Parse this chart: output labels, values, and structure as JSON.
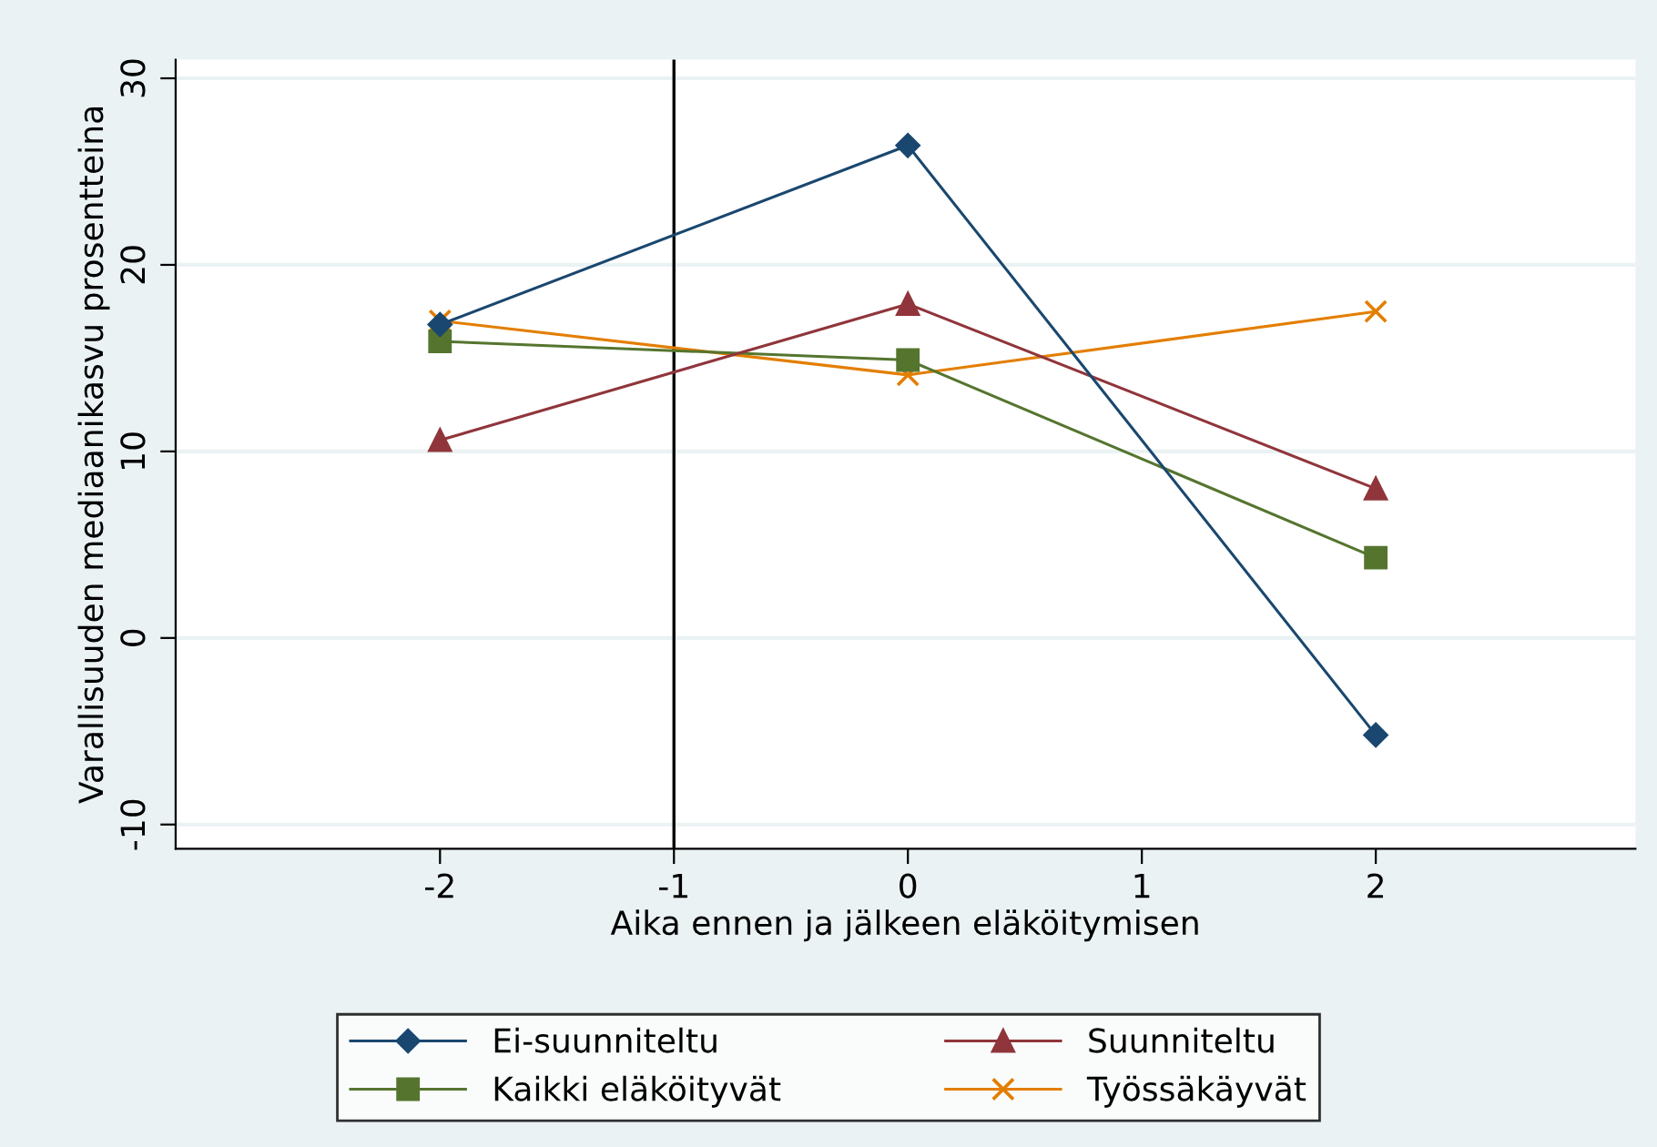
{
  "chart_data": {
    "type": "line",
    "xlabel": "Aika ennen ja jälkeen eläköitymisen",
    "ylabel": "Varallisuuden mediaanikasvu prosentteina",
    "x": [
      -2,
      0,
      2
    ],
    "series": [
      {
        "name": "Ei-suunniteltu",
        "color": "#1a476f",
        "marker": "diamond",
        "values": [
          16.8,
          26.4,
          -5.2
        ]
      },
      {
        "name": "Suunniteltu",
        "color": "#90353b",
        "marker": "triangle",
        "values": [
          10.6,
          17.9,
          8.0
        ]
      },
      {
        "name": "Kaikki eläköityvät",
        "color": "#55752f",
        "marker": "square",
        "values": [
          15.9,
          14.9,
          4.3
        ]
      },
      {
        "name": "Työssäkäyvät",
        "color": "#e37e00",
        "marker": "cross",
        "values": [
          17.0,
          14.1,
          17.5
        ]
      }
    ],
    "xlim": [
      -3.13,
      3.11
    ],
    "xticks": [
      -2,
      -1,
      0,
      1,
      2
    ],
    "ylim": [
      -11.3,
      31
    ],
    "yticks": [
      -10,
      0,
      10,
      20,
      30
    ],
    "grid": "y",
    "legend": "bottom",
    "ref_lines": [
      {
        "axis": "x",
        "value": -1,
        "color": "#000000"
      }
    ]
  }
}
